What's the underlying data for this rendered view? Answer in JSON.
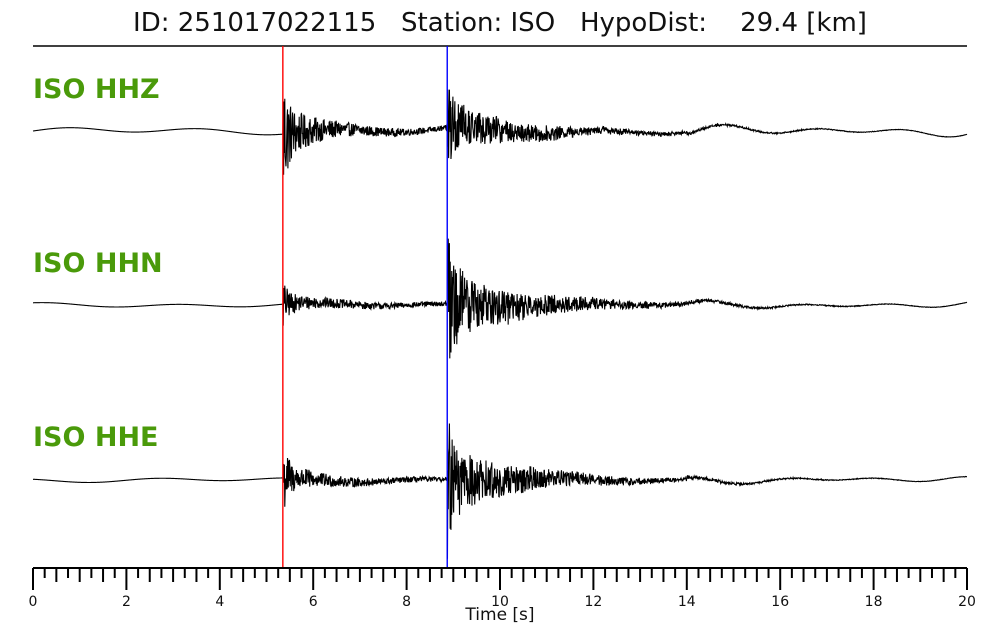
{
  "chart_data": {
    "type": "line",
    "title": "ID: 251017022115   Station: ISO   HypoDist:    29.4 [km]",
    "xlabel": "Time [s]",
    "ylabel": "",
    "xlim": [
      0,
      20
    ],
    "x_ticks_major": [
      0,
      2,
      4,
      6,
      8,
      10,
      12,
      14,
      16,
      18,
      20
    ],
    "x_ticks_minor_step": 0.25,
    "grid": false,
    "label_color": "#4a9a0a",
    "trace_color": "#000000",
    "picks": [
      {
        "phase": "P",
        "time": 5.35,
        "color": "#ff0000"
      },
      {
        "phase": "S",
        "time": 8.87,
        "color": "#0000ff"
      }
    ],
    "series": [
      {
        "name": "ISO HHZ",
        "noise": 0.03,
        "p_amp": 0.55,
        "s_amp": 0.48,
        "p_burst": 1.1,
        "s_burst": 0.9,
        "coda": 0.14
      },
      {
        "name": "ISO HHN",
        "noise": 0.02,
        "p_amp": 0.12,
        "s_amp": 0.7,
        "p_burst": 0.4,
        "s_burst": 1.4,
        "coda": 0.12
      },
      {
        "name": "ISO HHE",
        "noise": 0.02,
        "p_amp": 0.25,
        "s_amp": 0.65,
        "p_burst": 0.7,
        "s_burst": 1.2,
        "coda": 0.12
      }
    ]
  }
}
